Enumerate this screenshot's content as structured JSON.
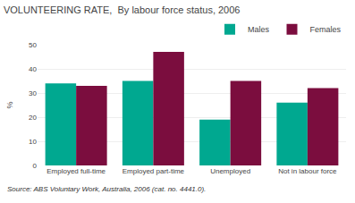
{
  "chart_data": {
    "type": "bar",
    "title": "VOLUNTEERING RATE,  By labour force status, 2006",
    "categories": [
      "Employed full-time",
      "Employed part-time",
      "Unemployed",
      "Not in labour force"
    ],
    "series": [
      {
        "name": "Males",
        "color": "#00A890",
        "values": [
          34,
          35,
          19,
          26
        ]
      },
      {
        "name": "Females",
        "color": "#7B0D3E",
        "values": [
          33,
          47,
          35,
          32
        ]
      }
    ],
    "ylabel": "%",
    "ylim": [
      0,
      50
    ],
    "yticks": [
      0,
      10,
      20,
      30,
      40,
      50
    ],
    "grid": true,
    "legend": "upper right",
    "annotations": [
      "Source: ABS Voluntary Work, Australia, 2006 (cat. no. 4441.0)."
    ]
  }
}
